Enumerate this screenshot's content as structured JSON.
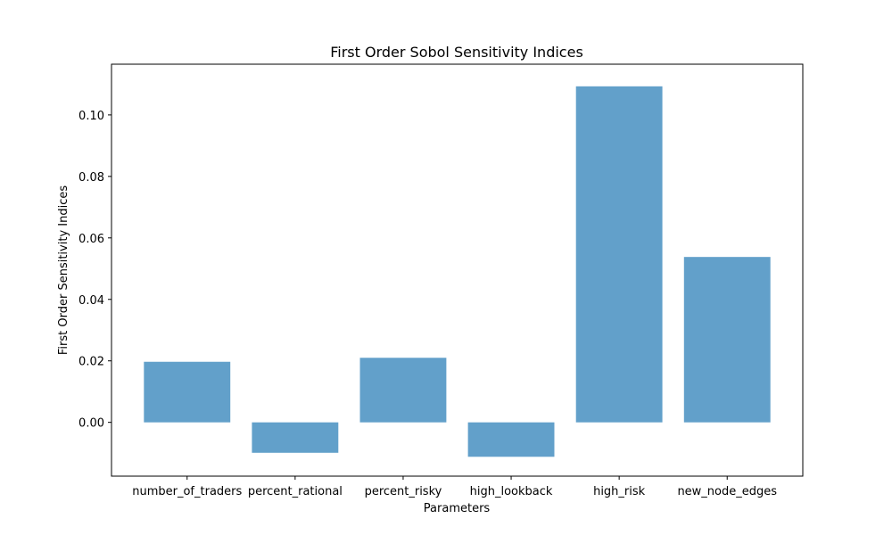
{
  "chart_data": {
    "type": "bar",
    "title": "First Order Sobol Sensitivity Indices",
    "xlabel": "Parameters",
    "ylabel": "First Order Sensitivity Indices",
    "categories": [
      "number_of_traders",
      "percent_rational",
      "percent_risky",
      "high_lookback",
      "high_risk",
      "new_node_edges"
    ],
    "values": [
      0.0197,
      -0.0099,
      0.021,
      -0.0112,
      0.1093,
      0.0538
    ],
    "ylim": [
      -0.0175,
      0.1165
    ],
    "yticks": [
      0.0,
      0.02,
      0.04,
      0.06,
      0.08,
      0.1
    ],
    "ytick_labels": [
      "0.00",
      "0.02",
      "0.04",
      "0.06",
      "0.08",
      "0.10"
    ],
    "bar_color": "#1f77b4",
    "bar_alpha": 0.7,
    "grid": false,
    "legend": "none"
  }
}
